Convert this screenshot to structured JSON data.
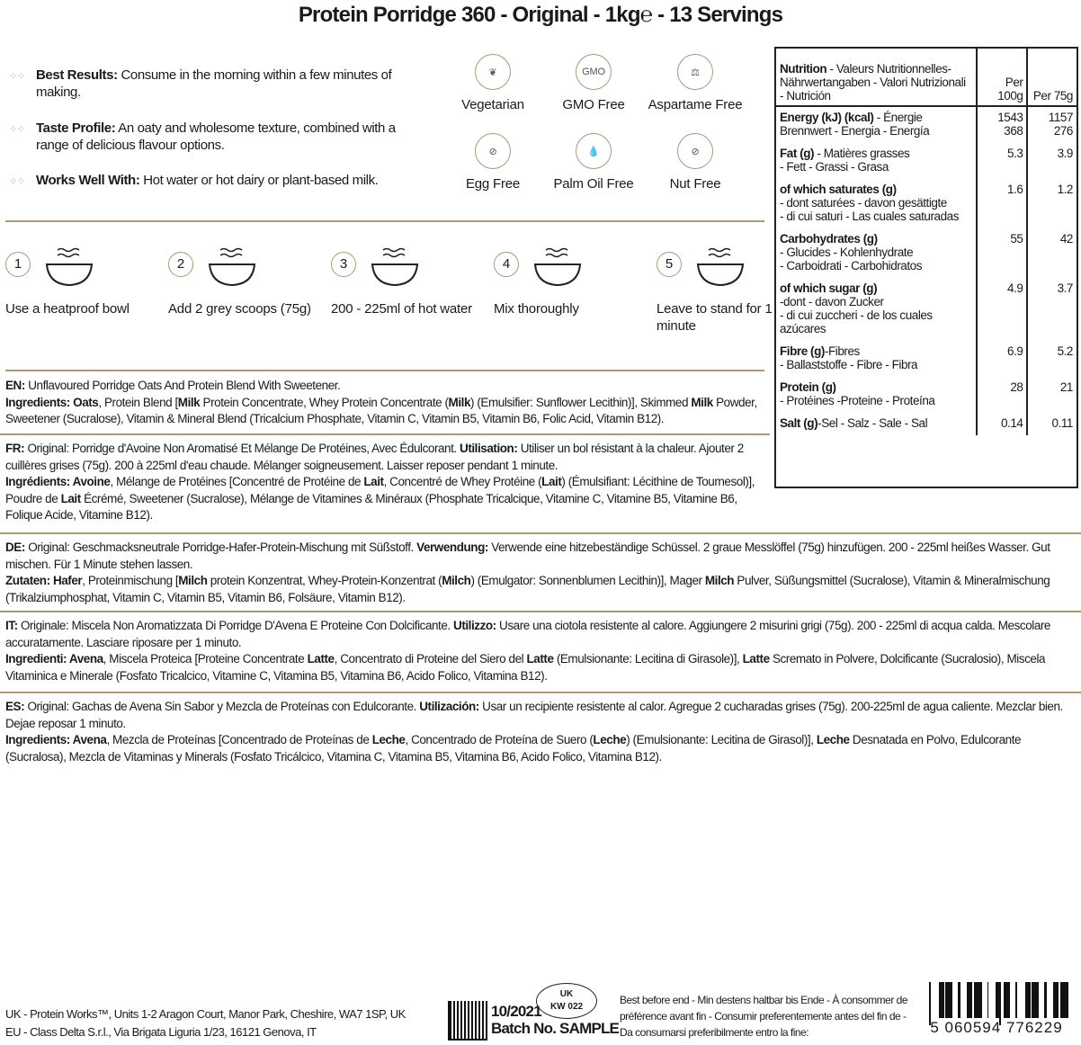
{
  "title": "Protein Porridge 360 - Original - 1kg℮ - 13 Servings",
  "benefits": [
    {
      "label": "Best Results:",
      "text": " Consume in the morning within a few minutes of making."
    },
    {
      "label": "Taste Profile:",
      "text": " An oaty and wholesome texture, combined with a range of delicious flavour options."
    },
    {
      "label": "Works Well With:",
      "text": " Hot water or hot dairy or plant-based milk."
    }
  ],
  "badges": [
    {
      "label": "Vegetarian",
      "icon": "leaf-icon",
      "glyph": "❦"
    },
    {
      "label": "GMO Free",
      "icon": "gmo-icon",
      "glyph": "GMO"
    },
    {
      "label": "Aspartame Free",
      "icon": "sweetener-icon",
      "glyph": "⚖"
    },
    {
      "label": "Egg Free",
      "icon": "egg-icon",
      "glyph": "⊘"
    },
    {
      "label": "Palm Oil Free",
      "icon": "oil-drop-icon",
      "glyph": "💧"
    },
    {
      "label": "Nut Free",
      "icon": "nut-icon",
      "glyph": "⊘"
    }
  ],
  "steps": [
    {
      "num": "1",
      "text": "Use a heatproof bowl",
      "icon": "bowl-steam-icon"
    },
    {
      "num": "2",
      "text": "Add 2 grey scoops (75g)",
      "icon": "bowl-scoop-icon"
    },
    {
      "num": "3",
      "text": "200 - 225ml of hot water",
      "icon": "bowl-pour-icon"
    },
    {
      "num": "4",
      "text": "Mix thoroughly",
      "icon": "bowl-mix-icon"
    },
    {
      "num": "5",
      "text": "Leave to stand for 1 minute",
      "icon": "bowl-timer-icon"
    }
  ],
  "paragraphs": [
    [
      [
        "EN:",
        1
      ],
      [
        " Unflavoured Porridge Oats And Protein Blend With Sweetener.",
        0
      ],
      [
        "\n",
        0
      ],
      [
        "Ingredients: Oats",
        1
      ],
      [
        ", Protein Blend [",
        0
      ],
      [
        "Milk",
        1
      ],
      [
        " Protein Concentrate, Whey Protein Concentrate (",
        0
      ],
      [
        "Milk",
        1
      ],
      [
        ") (Emulsifier: Sunflower Lecithin)], Skimmed ",
        0
      ],
      [
        "Milk",
        1
      ],
      [
        " Powder, Sweetener (Sucralose), Vitamin & Mineral Blend (Tricalcium Phosphate, Vitamin C, Vitamin B5, Vitamin B6, Folic Acid, Vitamin B12).",
        0
      ]
    ],
    [
      [
        "FR:",
        1
      ],
      [
        " Original: Porridge d'Avoine Non Aromatisé Et Mélange De Protéines, Avec Édulcorant. ",
        0
      ],
      [
        "Utilisation:",
        1
      ],
      [
        " Utiliser un bol résistant à la chaleur. Ajouter 2 cuillères grises (75g). 200 à 225ml d'eau chaude. Mélanger soigneusement. Laisser reposer pendant 1 minute.",
        0
      ],
      [
        "\n",
        0
      ],
      [
        "Ingrédients: Avoine",
        1
      ],
      [
        ", Mélange de Protéines [Concentré de Protéine de ",
        0
      ],
      [
        "Lait",
        1
      ],
      [
        ", Concentré de Whey Protéine (",
        0
      ],
      [
        "Lait",
        1
      ],
      [
        ") (Émulsifiant: Lécithine de Tournesol)], Poudre de ",
        0
      ],
      [
        "Lait",
        1
      ],
      [
        " Écrémé, Sweetener (Sucralose), Mélange de Vitamines & Minéraux (Phosphate Tricalcique, Vitamine C, Vitamine B5, Vitamine B6, Folique Acide, Vitamine B12).",
        0
      ]
    ],
    [
      [
        "DE:",
        1
      ],
      [
        " Original: Geschmacksneutrale Porridge-Hafer-Protein-Mischung mit Süßstoff. ",
        0
      ],
      [
        "Verwendung:",
        1
      ],
      [
        " Verwende eine hitzebeständige Schüssel. 2 graue Messlöffel (75g) hinzufügen. 200 - 225ml heißes Wasser. Gut mischen. Für 1 Minute stehen lassen.",
        0
      ],
      [
        "\n",
        0
      ],
      [
        "Zutaten: Hafer",
        1
      ],
      [
        ", Proteinmischung [",
        0
      ],
      [
        "Milch",
        1
      ],
      [
        " protein Konzentrat, Whey-Protein-Konzentrat (",
        0
      ],
      [
        "Milch",
        1
      ],
      [
        ") (Emulgator: Sonnenblumen Lecithin)], Mager ",
        0
      ],
      [
        "Milch",
        1
      ],
      [
        " Pulver, Süßungsmittel (Sucralose), Vitamin & Mineralmischung (Trikalziumphosphat, Vitamin C, Vitamin B5, Vitamin B6, Folsäure, Vitamin B12).",
        0
      ]
    ],
    [
      [
        "IT:",
        1
      ],
      [
        " Originale: Miscela Non Aromatizzata Di Porridge D'Avena E Proteine Con Dolcificante. ",
        0
      ],
      [
        "Utilizzo:",
        1
      ],
      [
        " Usare una ciotola resistente al calore. Aggiungere 2 misurini grigi (75g). 200 - 225ml di acqua calda. Mescolare accuratamente. Lasciare riposare per 1 minuto.",
        0
      ],
      [
        "\n",
        0
      ],
      [
        "Ingredienti: Avena",
        1
      ],
      [
        ", Miscela Proteica [Proteine Concentrate ",
        0
      ],
      [
        "Latte",
        1
      ],
      [
        ", Concentrato di Proteine del Siero del ",
        0
      ],
      [
        "Latte",
        1
      ],
      [
        " (Emulsionante: Lecitina di Girasole)], ",
        0
      ],
      [
        "Latte",
        1
      ],
      [
        " Scremato in Polvere, Dolcificante (Sucralosio), Miscela Vitaminica e Minerale (Fosfato Tricalcico, Vitamine C, Vitamina B5, Vitamina B6, Acido Folico, Vitamina B12).",
        0
      ]
    ],
    [
      [
        "ES:",
        1
      ],
      [
        " Original: Gachas de Avena Sin Sabor y Mezcla de Proteínas con Edulcorante. ",
        0
      ],
      [
        "Utilización:",
        1
      ],
      [
        " Usar un recipiente resistente al calor. Agregue 2 cucharadas grises (75g). 200-225ml de agua caliente. Mezclar bien. Dejae reposar 1 minuto.",
        0
      ],
      [
        "\n",
        0
      ],
      [
        "Ingredients: Avena",
        1
      ],
      [
        ", Mezcla de Proteínas [Concentrado de Proteínas de ",
        0
      ],
      [
        "Leche",
        1
      ],
      [
        ", Concentrado de Proteína de Suero (",
        0
      ],
      [
        "Leche",
        1
      ],
      [
        ") (Emulsionante: Lecitina de Girasol)], ",
        0
      ],
      [
        "Leche",
        1
      ],
      [
        " Desnatada en Polvo, Edulcorante (Sucralosa), Mezcla de Vitaminas y Minerals (Fosfato Tricálcico, Vitamina C, Vitamina B5, Vitamina B6, Acido Folico, Vitamina B12).",
        0
      ]
    ]
  ],
  "nutrition": {
    "header_bold": "Nutrition",
    "header_rest": " - Valeurs Nutritionnelles- Nährwertangaben - Valori Nutrizionali - Nutrición",
    "col1": "Per 100g",
    "col2": "Per 75g",
    "rows": [
      {
        "name": "Energy (kJ) (kcal)",
        "sub": " - Énergie\nBrennwert - Energia - Energía",
        "v1": "1543\n368",
        "v2": "1157\n276"
      },
      {
        "name": "Fat (g)",
        "sub": " - Matières grasses\n- Fett - Grassi - Grasa",
        "v1": "5.3",
        "v2": "3.9"
      },
      {
        "name": "of which saturates (g)",
        "sub": "\n- dont saturées - davon gesättigte\n- di cui saturi - Las cuales saturadas",
        "v1": "1.6",
        "v2": "1.2"
      },
      {
        "name": "Carbohydrates (g)",
        "sub": "\n- Glucides - Kohlenhydrate\n- Carboidrati - Carbohidratos",
        "v1": "55",
        "v2": "42"
      },
      {
        "name": "of which sugar (g)",
        "sub": "\n-dont - davon Zucker\n- di cui zuccheri - de los cuales azúcares",
        "v1": "4.9",
        "v2": "3.7"
      },
      {
        "name": "Fibre (g)",
        "sub": "-Fibres\n- Ballaststoffe - Fibre - Fibra",
        "v1": "6.9",
        "v2": "5.2"
      },
      {
        "name": "Protein (g)",
        "sub": "\n- Protéines -Proteine - Proteína",
        "v1": "28",
        "v2": "21"
      },
      {
        "name": "Salt (g)",
        "sub": "-Sel - Salz - Sale - Sal",
        "v1": "0.14",
        "v2": "0.11"
      }
    ]
  },
  "footer": {
    "address_uk": "UK - Protein Works™, Units 1-2 Aragon Court, Manor Park, Cheshire, WA7 1SP, UK",
    "address_eu": "EU - Class Delta S.r.l., Via Brigata Liguria 1/23, 16121 Genova, IT",
    "date": "10/2021",
    "batch": "Batch No. SAMPLE",
    "stamp_top": "UK",
    "stamp_bottom": "KW 022",
    "best_before": "Best before end - Min destens haltbar bis Ende - À consommer de préférence avant fin - Consumir preferentemente antes del fin de - Da consumarsi preferibilmente entro la fine:",
    "barcode": "5 060594 776229"
  }
}
